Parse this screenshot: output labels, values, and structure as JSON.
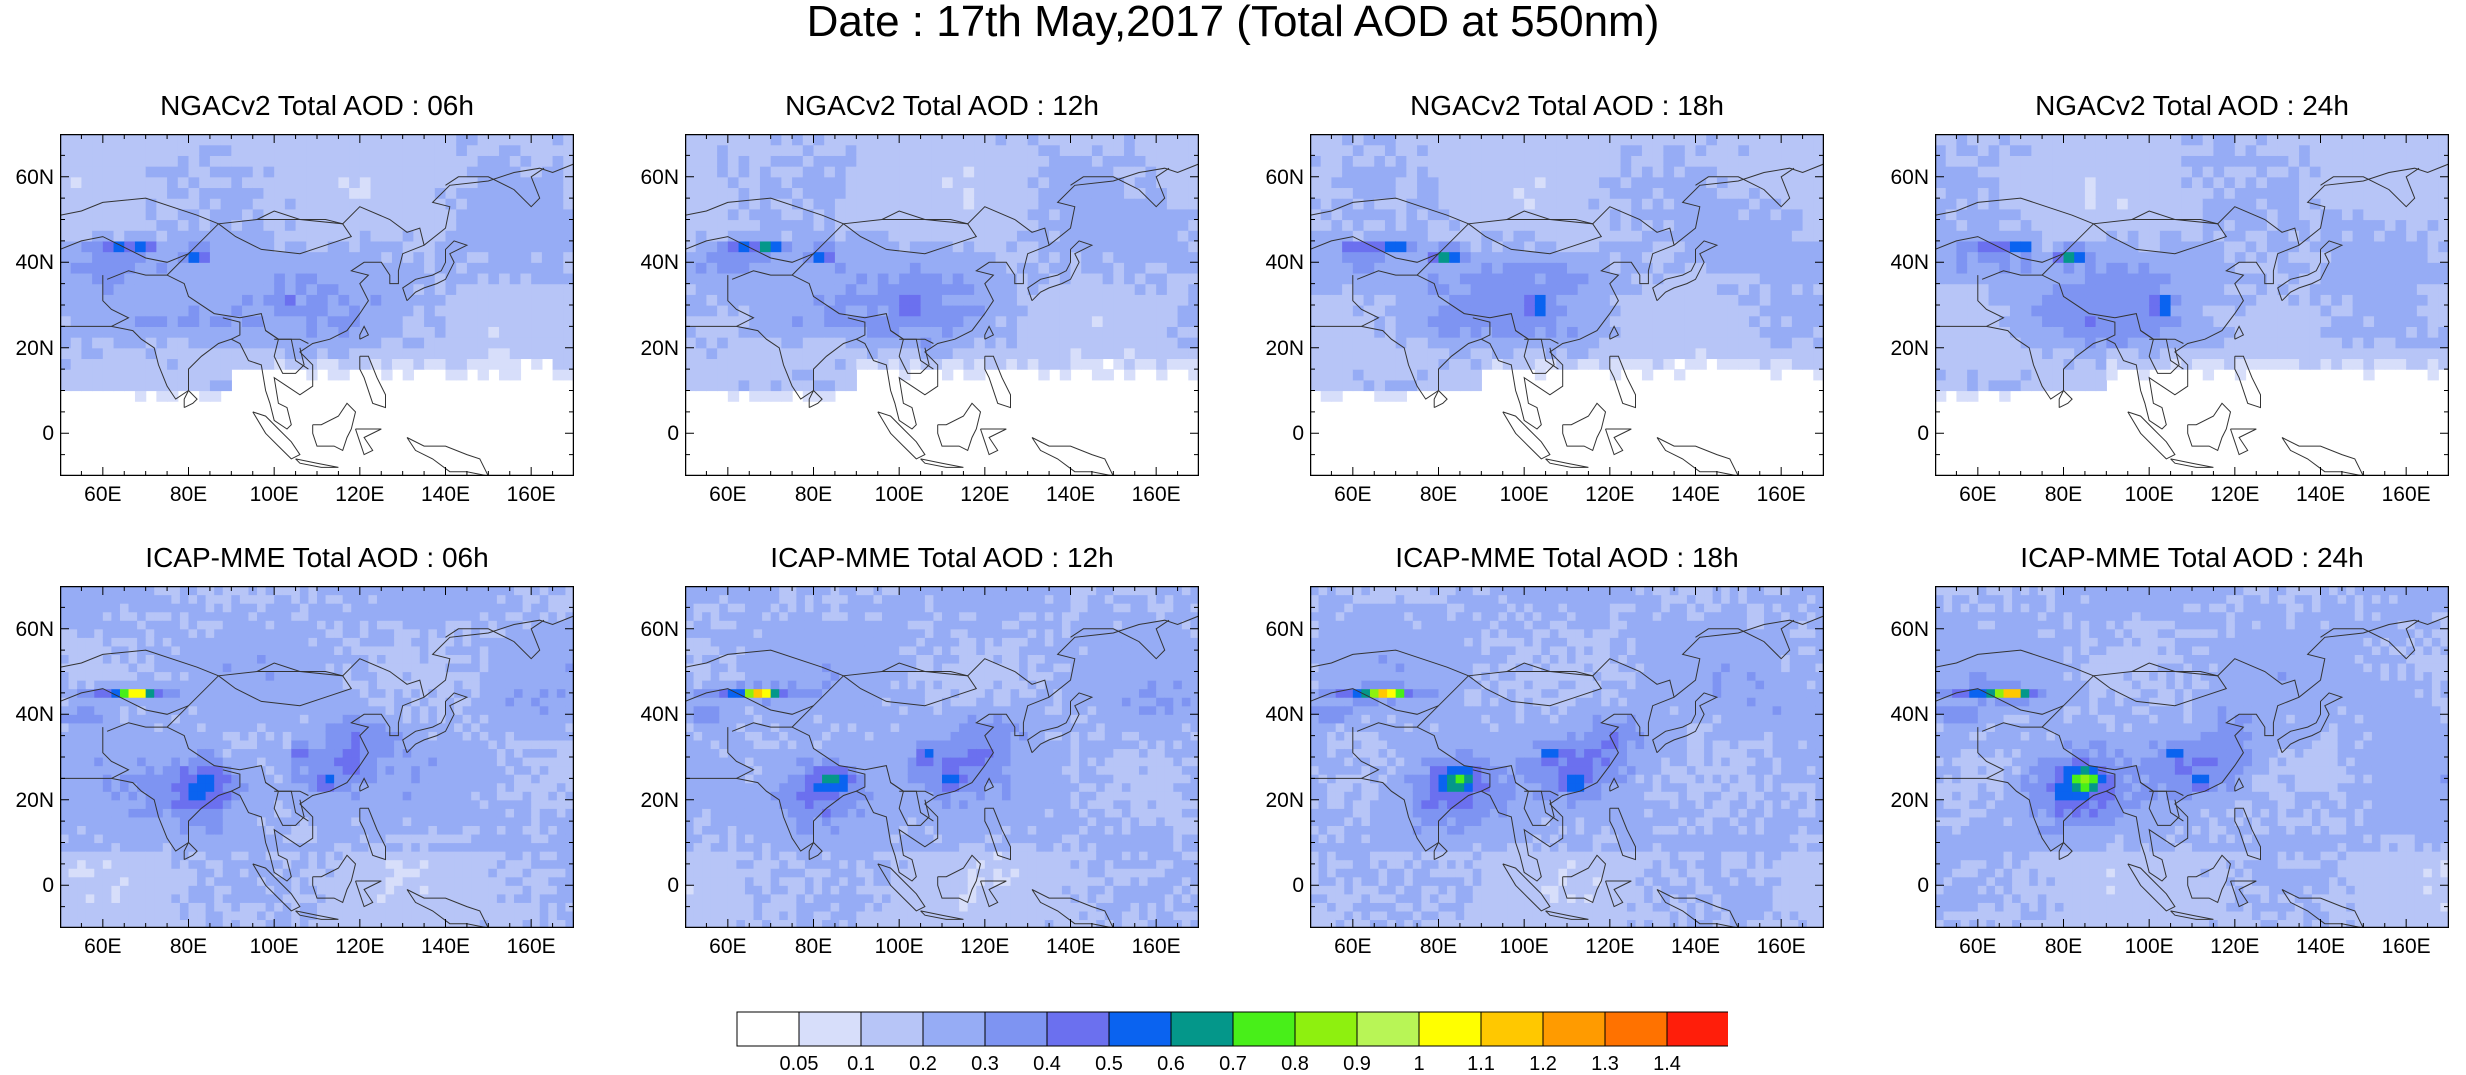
{
  "title": "Date : 17th May,2017 (Total AOD at 550nm)",
  "map": {
    "lat_labels": [
      "60N",
      "40N",
      "20N",
      "0"
    ],
    "lon_labels": [
      "60E",
      "80E",
      "100E",
      "120E",
      "140E",
      "160E"
    ],
    "extent": {
      "lon": [
        50,
        170
      ],
      "lat": [
        -10,
        70
      ]
    },
    "lat_ticks": [
      60,
      40,
      20,
      0
    ],
    "lon_ticks": [
      60,
      80,
      100,
      120,
      140,
      160
    ]
  },
  "panels": [
    {
      "title": "NGACv2 Total AOD : 06h",
      "model": "NGACv2",
      "hour": "06h"
    },
    {
      "title": "NGACv2 Total AOD : 12h",
      "model": "NGACv2",
      "hour": "12h"
    },
    {
      "title": "NGACv2 Total AOD : 18h",
      "model": "NGACv2",
      "hour": "18h"
    },
    {
      "title": "NGACv2 Total AOD : 24h",
      "model": "NGACv2",
      "hour": "24h"
    },
    {
      "title": "ICAP-MME Total AOD : 06h",
      "model": "ICAP-MME",
      "hour": "06h"
    },
    {
      "title": "ICAP-MME Total AOD : 12h",
      "model": "ICAP-MME",
      "hour": "12h"
    },
    {
      "title": "ICAP-MME Total AOD : 18h",
      "model": "ICAP-MME",
      "hour": "18h"
    },
    {
      "title": "ICAP-MME Total AOD : 24h",
      "model": "ICAP-MME",
      "hour": "24h"
    }
  ],
  "colorbar": {
    "labels": [
      "0.05",
      "0.1",
      "0.2",
      "0.3",
      "0.4",
      "0.5",
      "0.6",
      "0.7",
      "0.8",
      "0.9",
      "1",
      "1.1",
      "1.2",
      "1.3",
      "1.4"
    ],
    "colors": [
      "#ffffff",
      "#d7defa",
      "#b7c5f7",
      "#96acf5",
      "#7e94f2",
      "#6b70ef",
      "#0a63f0",
      "#04978a",
      "#48ef19",
      "#8ef00f",
      "#b8f556",
      "#ffff00",
      "#ffc800",
      "#ff9b00",
      "#ff7200",
      "#ff1e0a"
    ]
  }
}
